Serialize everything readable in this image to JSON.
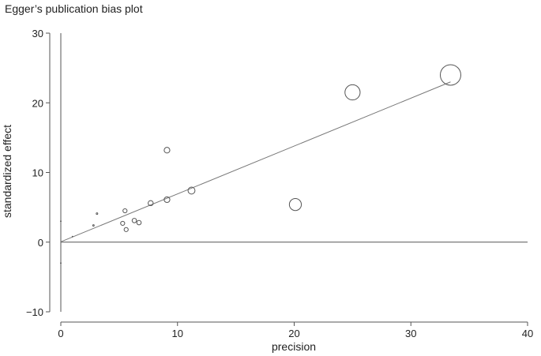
{
  "chart_data": {
    "type": "scatter",
    "title": "Egger’s publication bias plot",
    "xlabel": "precision",
    "ylabel": "standardized effect",
    "xlim": [
      0,
      40
    ],
    "ylim": [
      -10,
      30
    ],
    "x_ticks": [
      0,
      10,
      20,
      30,
      40
    ],
    "y_ticks": [
      -10,
      0,
      10,
      20,
      30
    ],
    "x_tick_labels": [
      "0",
      "10",
      "20",
      "30",
      "40"
    ],
    "y_tick_labels": [
      "−10",
      "0",
      "10",
      "20",
      "30"
    ],
    "grid": false,
    "points": [
      {
        "x": 1.0,
        "y": 0.8,
        "size": 0.4
      },
      {
        "x": 2.8,
        "y": 2.4,
        "size": 0.9
      },
      {
        "x": 3.1,
        "y": 4.1,
        "size": 1.0
      },
      {
        "x": 5.3,
        "y": 2.7,
        "size": 2.6
      },
      {
        "x": 5.5,
        "y": 4.5,
        "size": 2.6
      },
      {
        "x": 5.6,
        "y": 1.8,
        "size": 2.6
      },
      {
        "x": 6.3,
        "y": 3.1,
        "size": 2.8
      },
      {
        "x": 6.7,
        "y": 2.8,
        "size": 2.8
      },
      {
        "x": 7.7,
        "y": 5.6,
        "size": 3.2
      },
      {
        "x": 9.1,
        "y": 13.2,
        "size": 3.6
      },
      {
        "x": 9.1,
        "y": 6.1,
        "size": 3.6
      },
      {
        "x": 11.2,
        "y": 7.4,
        "size": 4.4
      },
      {
        "x": 20.1,
        "y": 5.4,
        "size": 7.6
      },
      {
        "x": 25.0,
        "y": 21.5,
        "size": 9.6
      },
      {
        "x": 33.4,
        "y": 24.0,
        "size": 13.0
      }
    ],
    "regression_line": {
      "x": [
        0,
        33.4
      ],
      "y": [
        0.05,
        23.0
      ]
    },
    "intercept_ci": {
      "x": 0,
      "low": -3.0,
      "high": 3.0
    },
    "vertical_reference": {
      "x": 0,
      "y_range": [
        -10,
        30
      ]
    },
    "horizontal_reference": {
      "y": 0,
      "x_range": [
        0,
        40
      ]
    }
  }
}
